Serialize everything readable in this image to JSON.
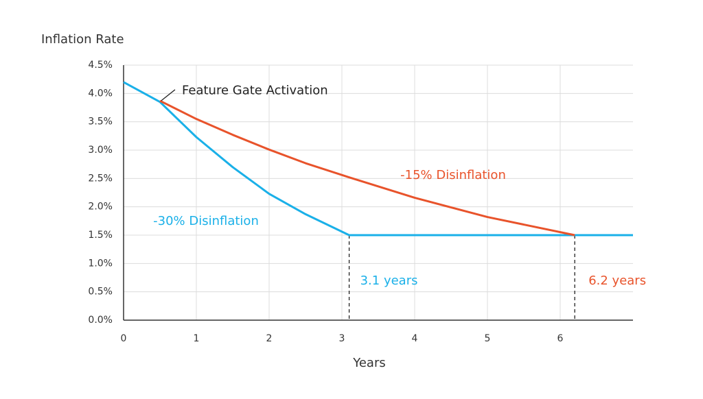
{
  "chart_data": {
    "type": "line",
    "y_label": "Inflation Rate",
    "x_label": "Years",
    "x": [
      0,
      0.5,
      1,
      1.5,
      2,
      2.5,
      3.1,
      4,
      5,
      6.2,
      7
    ],
    "series": [
      {
        "name": "-30% Disinflation",
        "color": "#1ab0e8",
        "values": [
          4.2,
          3.85,
          3.23,
          2.7,
          2.23,
          1.87,
          1.5,
          1.5,
          1.5,
          1.5,
          1.5
        ]
      },
      {
        "name": "-15% Disinflation",
        "color": "#e8532b",
        "values": [
          null,
          3.87,
          3.55,
          3.27,
          3.01,
          2.77,
          2.52,
          2.16,
          1.82,
          1.5,
          null
        ]
      }
    ],
    "annotations": [
      {
        "text": "Feature Gate Activation",
        "x": 0.5,
        "y": 3.85,
        "color": "#222222"
      }
    ],
    "markers": [
      {
        "x": 3.1,
        "y": 1.5,
        "label": "3.1 years",
        "color": "#1ab0e8"
      },
      {
        "x": 6.2,
        "y": 1.5,
        "label": "6.2 years",
        "color": "#e8532b"
      }
    ],
    "xlim": [
      0,
      7
    ],
    "xticks": [
      0,
      1,
      2,
      3,
      4,
      5,
      6
    ],
    "ylim": [
      0,
      4.5
    ],
    "yticks": [
      {
        "value": 0,
        "label": "0.0%"
      },
      {
        "value": 0.5,
        "label": "0.5%"
      },
      {
        "value": 1,
        "label": "1.0%"
      },
      {
        "value": 1.5,
        "label": "1.5%"
      },
      {
        "value": 2,
        "label": "2.0%"
      },
      {
        "value": 2.5,
        "label": "2.5%"
      },
      {
        "value": 3,
        "label": "3.0%"
      },
      {
        "value": 3.5,
        "label": "3.5%"
      },
      {
        "value": 4,
        "label": "4.0%"
      },
      {
        "value": 4.5,
        "label": "4.5%"
      }
    ],
    "grid": true
  }
}
